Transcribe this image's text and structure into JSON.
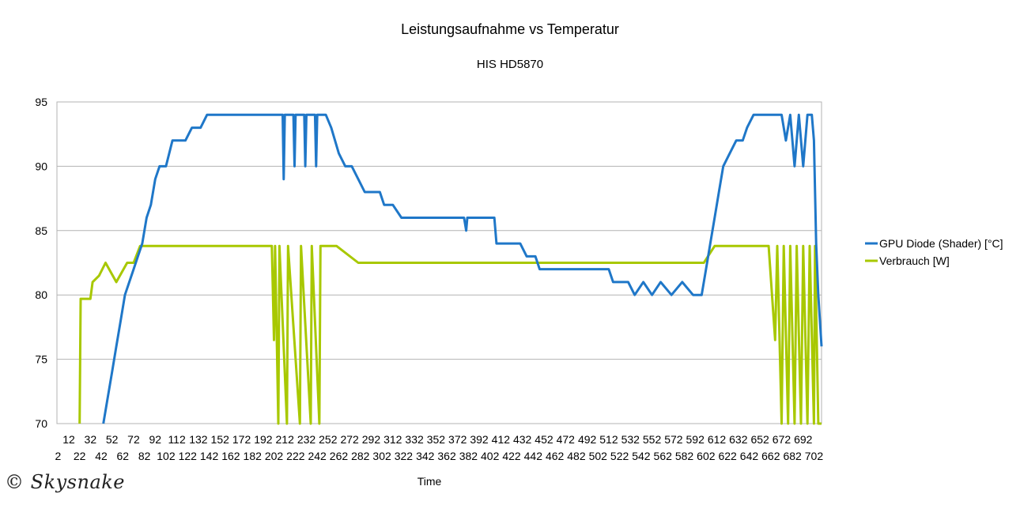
{
  "chart_data": {
    "type": "line",
    "title": "Leistungsaufnahme vs Temperatur",
    "subtitle": "HIS HD5870",
    "xlabel": "Time",
    "ylabel": "",
    "ylim": [
      70,
      95
    ],
    "yticks": [
      70,
      75,
      80,
      85,
      90,
      95
    ],
    "xlim": [
      1,
      709
    ],
    "x_tick_labels_upper": [
      "12",
      "32",
      "52",
      "72",
      "92",
      "112",
      "132",
      "152",
      "172",
      "192",
      "212",
      "232",
      "252",
      "272",
      "292",
      "312",
      "332",
      "352",
      "372",
      "392",
      "412",
      "432",
      "452",
      "472",
      "492",
      "512",
      "532",
      "552",
      "572",
      "592",
      "612",
      "632",
      "652",
      "672",
      "692"
    ],
    "x_tick_labels_lower": [
      "2",
      "22",
      "42",
      "62",
      "82",
      "102",
      "122",
      "142",
      "162",
      "182",
      "202",
      "222",
      "242",
      "262",
      "282",
      "302",
      "322",
      "342",
      "362",
      "382",
      "402",
      "422",
      "442",
      "462",
      "482",
      "502",
      "522",
      "542",
      "562",
      "582",
      "602",
      "622",
      "642",
      "662",
      "682",
      "702"
    ],
    "grid": "horizontal",
    "legend_position": "right",
    "series": [
      {
        "name": "GPU Diode (Shader) [°C]",
        "color": "#1f77c8",
        "points": [
          [
            44,
            70
          ],
          [
            48,
            72
          ],
          [
            52,
            74
          ],
          [
            56,
            76
          ],
          [
            60,
            78
          ],
          [
            64,
            80
          ],
          [
            68,
            81
          ],
          [
            72,
            82
          ],
          [
            76,
            83
          ],
          [
            80,
            84
          ],
          [
            84,
            86
          ],
          [
            88,
            87
          ],
          [
            92,
            89
          ],
          [
            96,
            90
          ],
          [
            102,
            90
          ],
          [
            108,
            92
          ],
          [
            120,
            92
          ],
          [
            126,
            93
          ],
          [
            134,
            93
          ],
          [
            140,
            94
          ],
          [
            160,
            94
          ],
          [
            180,
            94
          ],
          [
            200,
            94
          ],
          [
            210,
            94
          ],
          [
            211,
            89
          ],
          [
            212,
            94
          ],
          [
            220,
            94
          ],
          [
            221,
            90
          ],
          [
            222,
            94
          ],
          [
            230,
            94
          ],
          [
            231,
            90
          ],
          [
            232,
            94
          ],
          [
            240,
            94
          ],
          [
            241,
            90
          ],
          [
            242,
            94
          ],
          [
            250,
            94
          ],
          [
            255,
            93
          ],
          [
            262,
            91
          ],
          [
            268,
            90
          ],
          [
            274,
            90
          ],
          [
            280,
            89
          ],
          [
            286,
            88
          ],
          [
            292,
            88
          ],
          [
            300,
            88
          ],
          [
            304,
            87
          ],
          [
            312,
            87
          ],
          [
            320,
            86
          ],
          [
            340,
            86
          ],
          [
            360,
            86
          ],
          [
            378,
            86
          ],
          [
            380,
            85
          ],
          [
            381,
            86
          ],
          [
            400,
            86
          ],
          [
            406,
            86
          ],
          [
            408,
            84
          ],
          [
            420,
            84
          ],
          [
            430,
            84
          ],
          [
            436,
            83
          ],
          [
            444,
            83
          ],
          [
            448,
            82
          ],
          [
            460,
            82
          ],
          [
            480,
            82
          ],
          [
            500,
            82
          ],
          [
            512,
            82
          ],
          [
            516,
            81
          ],
          [
            530,
            81
          ],
          [
            536,
            80
          ],
          [
            544,
            81
          ],
          [
            552,
            80
          ],
          [
            560,
            81
          ],
          [
            570,
            80
          ],
          [
            580,
            81
          ],
          [
            590,
            80
          ],
          [
            598,
            80
          ],
          [
            602,
            82
          ],
          [
            606,
            84
          ],
          [
            610,
            86
          ],
          [
            614,
            88
          ],
          [
            618,
            90
          ],
          [
            624,
            91
          ],
          [
            630,
            92
          ],
          [
            636,
            92
          ],
          [
            640,
            93
          ],
          [
            646,
            94
          ],
          [
            652,
            94
          ],
          [
            660,
            94
          ],
          [
            668,
            94
          ],
          [
            672,
            94
          ],
          [
            676,
            92
          ],
          [
            680,
            94
          ],
          [
            684,
            90
          ],
          [
            688,
            94
          ],
          [
            692,
            90
          ],
          [
            696,
            94
          ],
          [
            700,
            94
          ],
          [
            702,
            92
          ],
          [
            704,
            84
          ],
          [
            706,
            80
          ],
          [
            709,
            76
          ]
        ]
      },
      {
        "name": "Verbrauch [W]",
        "color": "#a8c800",
        "points": [
          [
            22,
            70
          ],
          [
            23,
            79.7
          ],
          [
            32,
            79.7
          ],
          [
            34,
            81
          ],
          [
            40,
            81.5
          ],
          [
            46,
            82.5
          ],
          [
            56,
            81
          ],
          [
            66,
            82.5
          ],
          [
            72,
            82.5
          ],
          [
            78,
            83.8
          ],
          [
            90,
            83.8
          ],
          [
            100,
            83.8
          ],
          [
            120,
            83.8
          ],
          [
            160,
            83.8
          ],
          [
            200,
            83.8
          ],
          [
            202,
            76.5
          ],
          [
            203,
            83.8
          ],
          [
            206,
            70
          ],
          [
            207,
            83.8
          ],
          [
            214,
            70
          ],
          [
            215,
            83.8
          ],
          [
            226,
            70
          ],
          [
            227,
            83.8
          ],
          [
            236,
            70
          ],
          [
            237,
            83.8
          ],
          [
            244,
            70
          ],
          [
            245,
            83.8
          ],
          [
            260,
            83.8
          ],
          [
            280,
            82.5
          ],
          [
            300,
            82.5
          ],
          [
            320,
            82.5
          ],
          [
            360,
            82.5
          ],
          [
            400,
            82.5
          ],
          [
            430,
            82.5
          ],
          [
            446,
            82.5
          ],
          [
            460,
            82.5
          ],
          [
            500,
            82.5
          ],
          [
            540,
            82.5
          ],
          [
            570,
            82.5
          ],
          [
            590,
            82.5
          ],
          [
            600,
            82.5
          ],
          [
            610,
            83.8
          ],
          [
            640,
            83.8
          ],
          [
            660,
            83.8
          ],
          [
            666,
            76.5
          ],
          [
            668,
            83.8
          ],
          [
            672,
            70
          ],
          [
            674,
            83.8
          ],
          [
            678,
            70
          ],
          [
            680,
            83.8
          ],
          [
            684,
            70
          ],
          [
            686,
            83.8
          ],
          [
            690,
            70
          ],
          [
            692,
            83.8
          ],
          [
            696,
            70
          ],
          [
            698,
            83.8
          ],
          [
            702,
            70
          ],
          [
            703,
            83.8
          ],
          [
            706,
            70
          ],
          [
            709,
            70
          ]
        ]
      }
    ]
  },
  "watermark": "© Skysnake"
}
